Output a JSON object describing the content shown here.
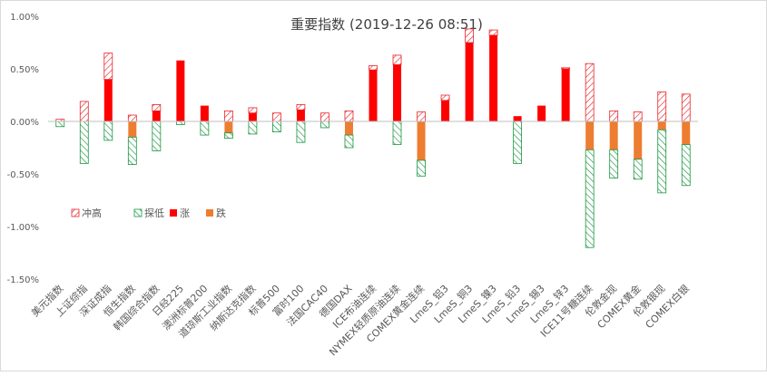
{
  "chart_data": {
    "type": "bar",
    "stacked": true,
    "title": "重要指数 (2019-12-26 08:51)",
    "ylim": [
      -1.5,
      1.0
    ],
    "yticks": [
      -1.5,
      -1.0,
      -0.5,
      0.0,
      0.5,
      1.0
    ],
    "ytick_labels": [
      "-1.50%",
      "-1.00%",
      "-0.50%",
      "0.00%",
      "0.50%",
      "1.00%"
    ],
    "grid": false,
    "legend_position": "left-middle",
    "categories": [
      "美元指数",
      "上证综指",
      "深证成指",
      "恒生指数",
      "韩国综合指数",
      "日经225",
      "澳洲标普200",
      "道琼斯工业指数",
      "纳斯达克指数",
      "标普500",
      "富时100",
      "法国CAC40",
      "德国DAX",
      "ICE布油连续",
      "NYMEX轻质原油连续",
      "COMEX黄金连续",
      "LmeS_铝3",
      "LmeS_铜3",
      "LmeS_镍3",
      "LmeS_铅3",
      "LmeS_锡3",
      "LmeS_锌3",
      "ICE11号糖连续",
      "伦敦金现",
      "COMEX黄金",
      "伦敦银现",
      "COMEX白银"
    ],
    "series": [
      {
        "name": "冲高",
        "color": "#e8232a",
        "pattern": "hatch-diag",
        "values": [
          0.02,
          0.19,
          0.25,
          0.06,
          0.06,
          0.0,
          0.0,
          0.1,
          0.05,
          0.08,
          0.05,
          0.08,
          0.1,
          0.04,
          0.09,
          0.09,
          0.05,
          0.13,
          0.05,
          0.0,
          0.0,
          0.01,
          0.55,
          0.1,
          0.09,
          0.28,
          0.26
        ]
      },
      {
        "name": "探低",
        "color": "#1a9641",
        "pattern": "hatch-diag",
        "values": [
          -0.05,
          -0.4,
          -0.18,
          -0.26,
          -0.28,
          -0.03,
          -0.13,
          -0.05,
          -0.12,
          -0.1,
          -0.2,
          -0.06,
          -0.12,
          0.0,
          -0.22,
          -0.15,
          0.0,
          0.0,
          0.0,
          -0.4,
          0.0,
          0.0,
          -0.93,
          -0.27,
          -0.19,
          -0.6,
          -0.39
        ]
      },
      {
        "name": "涨",
        "color": "#ff0000",
        "pattern": "solid",
        "values": [
          0.0,
          0.0,
          0.4,
          0.0,
          0.1,
          0.58,
          0.15,
          0.0,
          0.08,
          0.0,
          0.11,
          0.0,
          0.0,
          0.49,
          0.54,
          0.0,
          0.2,
          0.75,
          0.82,
          0.05,
          0.15,
          0.5,
          0.0,
          0.0,
          0.0,
          0.0,
          0.0
        ]
      },
      {
        "name": "跌",
        "color": "#ed7d31",
        "pattern": "solid",
        "values": [
          0.0,
          0.0,
          0.0,
          -0.15,
          0.0,
          0.0,
          0.0,
          -0.11,
          0.0,
          0.0,
          0.0,
          0.0,
          -0.13,
          0.0,
          0.0,
          -0.37,
          0.0,
          0.0,
          0.0,
          0.0,
          0.0,
          0.0,
          -0.27,
          -0.27,
          -0.36,
          -0.08,
          -0.22
        ]
      }
    ]
  }
}
